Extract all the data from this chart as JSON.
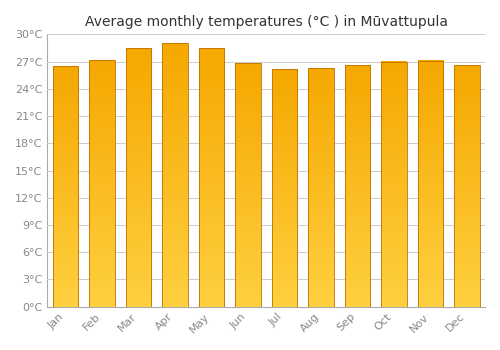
{
  "title": "Average monthly temperatures (°C ) in Mūvattupula",
  "months": [
    "Jan",
    "Feb",
    "Mar",
    "Apr",
    "May",
    "Jun",
    "Jul",
    "Aug",
    "Sep",
    "Oct",
    "Nov",
    "Dec"
  ],
  "temperatures": [
    26.5,
    27.2,
    28.5,
    29.0,
    28.5,
    26.8,
    26.2,
    26.3,
    26.6,
    27.0,
    27.1,
    26.6
  ],
  "bar_color_top": "#F5A800",
  "bar_color_bottom": "#FFD040",
  "bar_edge_color": "#C07000",
  "background_color": "#FFFFFF",
  "grid_color": "#CCCCCC",
  "ylim": [
    0,
    30
  ],
  "yticks": [
    0,
    3,
    6,
    9,
    12,
    15,
    18,
    21,
    24,
    27,
    30
  ],
  "tick_label_color": "#888888",
  "title_color": "#333333",
  "title_fontsize": 10,
  "bar_width": 0.7
}
